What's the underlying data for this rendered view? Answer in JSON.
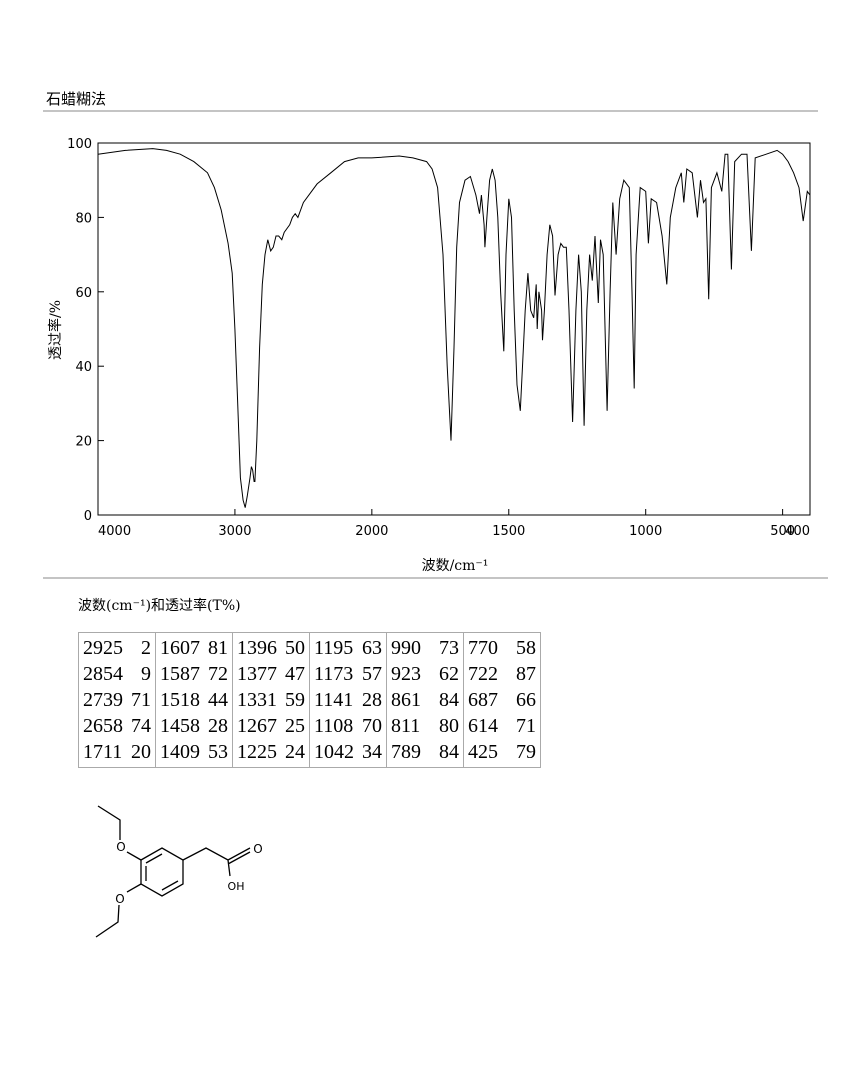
{
  "header": {
    "title": "石蜡糊法"
  },
  "chart_data": {
    "type": "line",
    "xlabel": "波数/cm⁻¹",
    "ylabel": "透过率/%",
    "xlim": [
      4000,
      400
    ],
    "xscale": "piecewise",
    "xbreak": 2000,
    "xbreak_factor": 2,
    "xticks": [
      4000,
      3000,
      2000,
      1500,
      1000,
      500,
      400
    ],
    "ylim": [
      0,
      100
    ],
    "yticks": [
      0,
      20,
      40,
      60,
      80,
      100
    ],
    "color": "#000000",
    "series": [
      {
        "name": "透过率",
        "x": [
          4000,
          3800,
          3600,
          3500,
          3400,
          3300,
          3200,
          3150,
          3100,
          3050,
          3020,
          3000,
          2980,
          2960,
          2940,
          2925,
          2910,
          2890,
          2880,
          2870,
          2860,
          2854,
          2840,
          2820,
          2800,
          2780,
          2760,
          2739,
          2720,
          2700,
          2680,
          2658,
          2640,
          2600,
          2580,
          2560,
          2540,
          2500,
          2400,
          2300,
          2200,
          2100,
          2000,
          1900,
          1850,
          1800,
          1780,
          1760,
          1740,
          1725,
          1711,
          1700,
          1690,
          1680,
          1660,
          1640,
          1620,
          1607,
          1600,
          1590,
          1587,
          1580,
          1570,
          1560,
          1550,
          1540,
          1530,
          1518,
          1510,
          1500,
          1490,
          1480,
          1470,
          1458,
          1450,
          1440,
          1430,
          1420,
          1409,
          1400,
          1396,
          1390,
          1380,
          1377,
          1370,
          1360,
          1350,
          1340,
          1331,
          1320,
          1310,
          1300,
          1290,
          1280,
          1267,
          1255,
          1245,
          1235,
          1225,
          1215,
          1205,
          1195,
          1185,
          1173,
          1165,
          1155,
          1141,
          1130,
          1120,
          1108,
          1095,
          1080,
          1060,
          1050,
          1042,
          1035,
          1020,
          1000,
          990,
          980,
          960,
          940,
          923,
          910,
          890,
          870,
          861,
          850,
          830,
          811,
          800,
          789,
          780,
          770,
          760,
          740,
          722,
          710,
          700,
          687,
          675,
          650,
          630,
          614,
          600,
          560,
          520,
          500,
          480,
          460,
          440,
          425,
          410,
          400
        ],
        "values": [
          97,
          98,
          98.5,
          98,
          97,
          95,
          92,
          88,
          82,
          73,
          65,
          50,
          30,
          10,
          4,
          2,
          5,
          10,
          13,
          12,
          9,
          9,
          20,
          45,
          62,
          70,
          74,
          71,
          72,
          75,
          75,
          74,
          76,
          78,
          80,
          81,
          80,
          84,
          89,
          92,
          95,
          96,
          96,
          96.5,
          96,
          95,
          93,
          88,
          70,
          40,
          20,
          45,
          72,
          84,
          90,
          91,
          86,
          81,
          86,
          78,
          72,
          80,
          90,
          93,
          90,
          80,
          60,
          44,
          70,
          85,
          80,
          55,
          35,
          28,
          40,
          55,
          65,
          55,
          53,
          62,
          50,
          60,
          55,
          47,
          55,
          70,
          78,
          75,
          59,
          70,
          73,
          72,
          72,
          55,
          25,
          55,
          70,
          60,
          24,
          55,
          70,
          63,
          75,
          57,
          74,
          70,
          28,
          60,
          84,
          70,
          85,
          90,
          88,
          60,
          34,
          70,
          88,
          87,
          73,
          85,
          84,
          75,
          62,
          80,
          88,
          92,
          84,
          93,
          92,
          80,
          90,
          84,
          85,
          58,
          88,
          92,
          87,
          97,
          97,
          66,
          95,
          97,
          97,
          71,
          96,
          97,
          98,
          97,
          95,
          92,
          88,
          79,
          87,
          86
        ]
      }
    ]
  },
  "table": {
    "caption": "波数(cm⁻¹)和透过率(T%)",
    "groups": [
      [
        [
          2925,
          2
        ],
        [
          2854,
          9
        ],
        [
          2739,
          71
        ],
        [
          2658,
          74
        ],
        [
          1711,
          20
        ]
      ],
      [
        [
          1607,
          81
        ],
        [
          1587,
          72
        ],
        [
          1518,
          44
        ],
        [
          1458,
          28
        ],
        [
          1409,
          53
        ]
      ],
      [
        [
          1396,
          50
        ],
        [
          1377,
          47
        ],
        [
          1331,
          59
        ],
        [
          1267,
          25
        ],
        [
          1225,
          24
        ]
      ],
      [
        [
          1195,
          63
        ],
        [
          1173,
          57
        ],
        [
          1141,
          28
        ],
        [
          1108,
          70
        ],
        [
          1042,
          34
        ]
      ],
      [
        [
          990,
          73
        ],
        [
          923,
          62
        ],
        [
          861,
          84
        ],
        [
          811,
          80
        ],
        [
          789,
          84
        ]
      ],
      [
        [
          770,
          58
        ],
        [
          722,
          87
        ],
        [
          687,
          66
        ],
        [
          614,
          71
        ],
        [
          425,
          79
        ]
      ]
    ]
  },
  "molecule": {
    "labels": [
      "O",
      "O",
      "O",
      "OH"
    ]
  }
}
